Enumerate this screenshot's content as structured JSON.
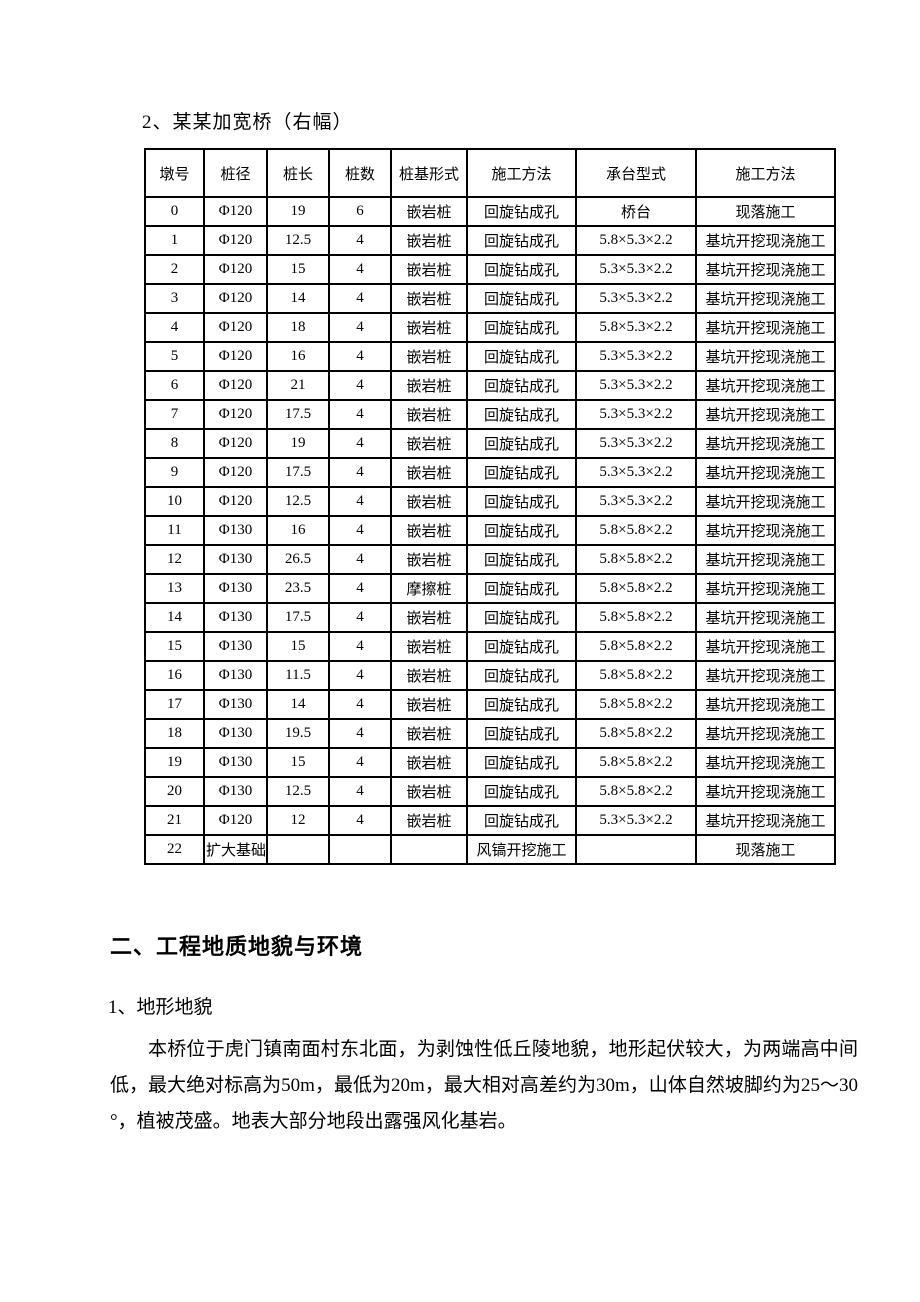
{
  "page": {
    "title": "2、某某加宽桥（右幅）",
    "section_heading": "二、工程地质地貌与环境",
    "sub_heading": "1、地形地貌",
    "paragraph_lines": [
      "本桥位于虎门镇南面村东北面，为剥蚀性低丘陵地貌，地形起伏较大，为两端高中间",
      "低，最大绝对标高为50m，最低为20m，最大相对高差约为30m，山体自然坡脚约为25～30",
      "°，植被茂盛。地表大部分地段出露强风化基岩。"
    ],
    "text_color": "#000000",
    "background_color": "#ffffff"
  },
  "table": {
    "columns": [
      "墩号",
      "桩径",
      "桩长",
      "桩数",
      "桩基形式",
      "施工方法",
      "承台型式",
      "施工方法"
    ],
    "rows": [
      [
        "0",
        "Φ120",
        "19",
        "6",
        "嵌岩桩",
        "回旋钻成孔",
        "桥台",
        "现落施工"
      ],
      [
        "1",
        "Φ120",
        "12.5",
        "4",
        "嵌岩桩",
        "回旋钻成孔",
        "5.8×5.3×2.2",
        "基坑开挖现浇施工"
      ],
      [
        "2",
        "Φ120",
        "15",
        "4",
        "嵌岩桩",
        "回旋钻成孔",
        "5.3×5.3×2.2",
        "基坑开挖现浇施工"
      ],
      [
        "3",
        "Φ120",
        "14",
        "4",
        "嵌岩桩",
        "回旋钻成孔",
        "5.3×5.3×2.2",
        "基坑开挖现浇施工"
      ],
      [
        "4",
        "Φ120",
        "18",
        "4",
        "嵌岩桩",
        "回旋钻成孔",
        "5.8×5.3×2.2",
        "基坑开挖现浇施工"
      ],
      [
        "5",
        "Φ120",
        "16",
        "4",
        "嵌岩桩",
        "回旋钻成孔",
        "5.3×5.3×2.2",
        "基坑开挖现浇施工"
      ],
      [
        "6",
        "Φ120",
        "21",
        "4",
        "嵌岩桩",
        "回旋钻成孔",
        "5.3×5.3×2.2",
        "基坑开挖现浇施工"
      ],
      [
        "7",
        "Φ120",
        "17.5",
        "4",
        "嵌岩桩",
        "回旋钻成孔",
        "5.3×5.3×2.2",
        "基坑开挖现浇施工"
      ],
      [
        "8",
        "Φ120",
        "19",
        "4",
        "嵌岩桩",
        "回旋钻成孔",
        "5.3×5.3×2.2",
        "基坑开挖现浇施工"
      ],
      [
        "9",
        "Φ120",
        "17.5",
        "4",
        "嵌岩桩",
        "回旋钻成孔",
        "5.3×5.3×2.2",
        "基坑开挖现浇施工"
      ],
      [
        "10",
        "Φ120",
        "12.5",
        "4",
        "嵌岩桩",
        "回旋钻成孔",
        "5.3×5.3×2.2",
        "基坑开挖现浇施工"
      ],
      [
        "11",
        "Φ130",
        "16",
        "4",
        "嵌岩桩",
        "回旋钻成孔",
        "5.8×5.8×2.2",
        "基坑开挖现浇施工"
      ],
      [
        "12",
        "Φ130",
        "26.5",
        "4",
        "嵌岩桩",
        "回旋钻成孔",
        "5.8×5.8×2.2",
        "基坑开挖现浇施工"
      ],
      [
        "13",
        "Φ130",
        "23.5",
        "4",
        "摩擦桩",
        "回旋钻成孔",
        "5.8×5.8×2.2",
        "基坑开挖现浇施工"
      ],
      [
        "14",
        "Φ130",
        "17.5",
        "4",
        "嵌岩桩",
        "回旋钻成孔",
        "5.8×5.8×2.2",
        "基坑开挖现浇施工"
      ],
      [
        "15",
        "Φ130",
        "15",
        "4",
        "嵌岩桩",
        "回旋钻成孔",
        "5.8×5.8×2.2",
        "基坑开挖现浇施工"
      ],
      [
        "16",
        "Φ130",
        "11.5",
        "4",
        "嵌岩桩",
        "回旋钻成孔",
        "5.8×5.8×2.2",
        "基坑开挖现浇施工"
      ],
      [
        "17",
        "Φ130",
        "14",
        "4",
        "嵌岩桩",
        "回旋钻成孔",
        "5.8×5.8×2.2",
        "基坑开挖现浇施工"
      ],
      [
        "18",
        "Φ130",
        "19.5",
        "4",
        "嵌岩桩",
        "回旋钻成孔",
        "5.8×5.8×2.2",
        "基坑开挖现浇施工"
      ],
      [
        "19",
        "Φ130",
        "15",
        "4",
        "嵌岩桩",
        "回旋钻成孔",
        "5.8×5.8×2.2",
        "基坑开挖现浇施工"
      ],
      [
        "20",
        "Φ130",
        "12.5",
        "4",
        "嵌岩桩",
        "回旋钻成孔",
        "5.8×5.8×2.2",
        "基坑开挖现浇施工"
      ],
      [
        "21",
        "Φ120",
        "12",
        "4",
        "嵌岩桩",
        "回旋钻成孔",
        "5.3×5.3×2.2",
        "基坑开挖现浇施工"
      ],
      [
        "22",
        "扩大基础",
        "",
        "",
        "",
        "风镐开挖施工",
        "",
        "现落施工"
      ]
    ]
  }
}
